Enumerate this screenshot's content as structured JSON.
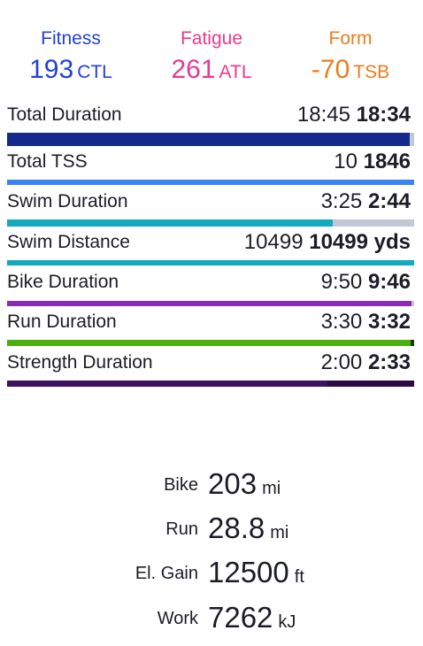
{
  "header": {
    "metrics": [
      {
        "label": "Fitness",
        "value": 193,
        "unit": "CTL"
      },
      {
        "label": "Fatigue",
        "value": 261,
        "unit": "ATL"
      },
      {
        "label": "Form",
        "value": -70,
        "unit": "TSB"
      }
    ]
  },
  "rows": [
    {
      "label": "Total Duration",
      "planned": "18:45",
      "actual": "18:34"
    },
    {
      "label": "Total TSS",
      "planned": 10,
      "actual": 1846
    },
    {
      "label": "Swim Duration",
      "planned": "3:25",
      "actual": "2:44"
    },
    {
      "label": "Swim Distance",
      "planned": 10499,
      "actual": 10499,
      "unit": "yds"
    },
    {
      "label": "Bike Duration",
      "planned": "9:50",
      "actual": "9:46"
    },
    {
      "label": "Run Duration",
      "planned": "3:30",
      "actual": "3:32"
    },
    {
      "label": "Strength Duration",
      "planned": "2:00",
      "actual": "2:33"
    }
  ],
  "summary": [
    {
      "label": "Bike",
      "value": 203,
      "unit": "mi"
    },
    {
      "label": "Run",
      "value": 28.8,
      "unit": "mi"
    },
    {
      "label": "El. Gain",
      "value": 12500,
      "unit": "ft"
    },
    {
      "label": "Work",
      "value": 7262,
      "unit": "kJ"
    }
  ]
}
